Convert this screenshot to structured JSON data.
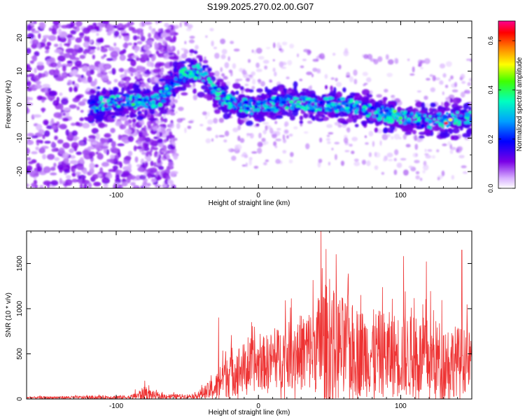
{
  "title": "S199.2025.270.02.00.G07",
  "chart_data": [
    {
      "type": "heatmap",
      "xlabel": "Height of straight line (km)",
      "ylabel": "Frequency (Hz)",
      "xlim": [
        -163,
        150
      ],
      "ylim": [
        -25,
        25
      ],
      "xticks": [
        -100,
        0,
        100
      ],
      "yticks": [
        -20,
        -10,
        0,
        10,
        20
      ],
      "colorbar": {
        "label": "Normalized spectral amplitude",
        "range": [
          0.0,
          0.68
        ],
        "ticks": [
          0.0,
          0.2,
          0.4,
          0.6
        ],
        "colormap": [
          "#ffffff",
          "#7a00e6",
          "#0000ff",
          "#00a0ff",
          "#00ffc0",
          "#40ff00",
          "#ffff00",
          "#ff8000",
          "#ff0000",
          "#ff00a0"
        ]
      },
      "ridge": {
        "description_points": [
          {
            "x": -115,
            "y": 0
          },
          {
            "x": -90,
            "y": 1
          },
          {
            "x": -70,
            "y": 1
          },
          {
            "x": -55,
            "y": 9
          },
          {
            "x": -40,
            "y": 10
          },
          {
            "x": -30,
            "y": 3
          },
          {
            "x": -15,
            "y": 0
          },
          {
            "x": 0,
            "y": -1
          },
          {
            "x": 20,
            "y": 1
          },
          {
            "x": 40,
            "y": 0
          },
          {
            "x": 60,
            "y": 0
          },
          {
            "x": 80,
            "y": -2
          },
          {
            "x": 100,
            "y": -4
          },
          {
            "x": 120,
            "y": -5
          },
          {
            "x": 140,
            "y": -4
          }
        ]
      },
      "colors": {
        "noise": "#8a2be2",
        "peak": "#ff0000"
      }
    },
    {
      "type": "line",
      "xlabel": "Height of straight line (km)",
      "ylabel": "SNR (10 * v/v)",
      "xlim": [
        -163,
        150
      ],
      "ylim": [
        0,
        1860
      ],
      "xticks": [
        -100,
        0,
        100
      ],
      "yticks": [
        0,
        500,
        1000,
        1500
      ],
      "series": [
        {
          "name": "SNR",
          "color": "#ee3333",
          "envelope": [
            {
              "x": -163,
              "base": 15,
              "amp": 20
            },
            {
              "x": -90,
              "base": 20,
              "amp": 40
            },
            {
              "x": -80,
              "base": 60,
              "amp": 140
            },
            {
              "x": -70,
              "base": 30,
              "amp": 50
            },
            {
              "x": -45,
              "base": 30,
              "amp": 40
            },
            {
              "x": -30,
              "base": 120,
              "amp": 250
            },
            {
              "x": -25,
              "base": 280,
              "amp": 500
            },
            {
              "x": 0,
              "base": 380,
              "amp": 520
            },
            {
              "x": 20,
              "base": 480,
              "amp": 650
            },
            {
              "x": 40,
              "base": 560,
              "amp": 900
            },
            {
              "x": 45,
              "base": 620,
              "amp": 1250
            },
            {
              "x": 70,
              "base": 520,
              "amp": 900
            },
            {
              "x": 100,
              "base": 480,
              "amp": 850
            },
            {
              "x": 130,
              "base": 430,
              "amp": 800
            },
            {
              "x": 150,
              "base": 420,
              "amp": 600
            }
          ],
          "peaks": [
            {
              "x": 44,
              "y": 1860
            },
            {
              "x": 143,
              "y": 1650
            },
            {
              "x": 102,
              "y": 1580
            },
            {
              "x": 118,
              "y": 1520
            },
            {
              "x": 63,
              "y": 1330
            },
            {
              "x": 19,
              "y": 1090
            },
            {
              "x": -28,
              "y": 900
            },
            {
              "x": -80,
              "y": 200
            }
          ]
        }
      ]
    }
  ]
}
